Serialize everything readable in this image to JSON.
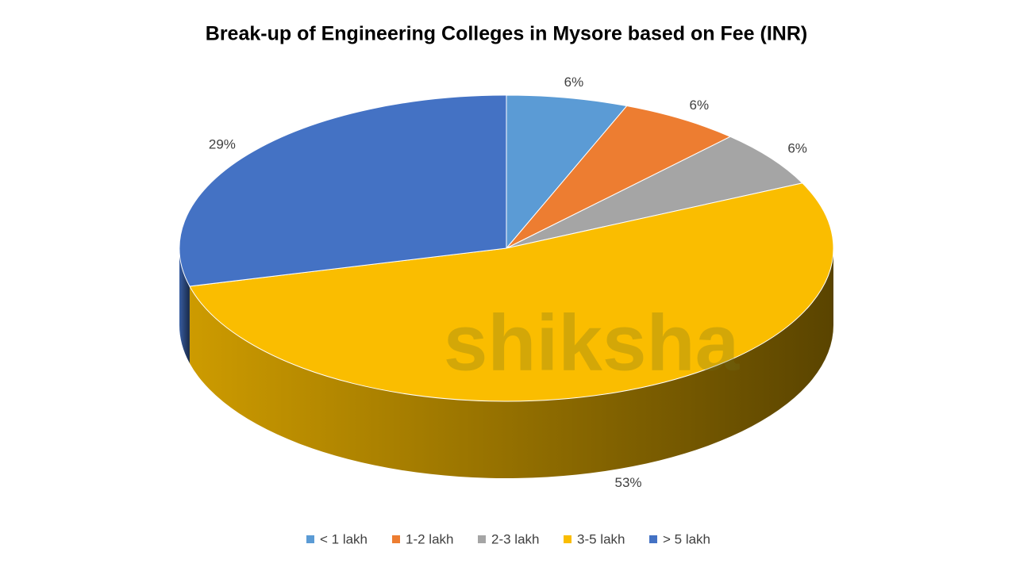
{
  "chart_data": {
    "type": "pie",
    "title": "Break-up of Engineering Colleges in Mysore based on Fee (INR)",
    "categories": [
      "< 1 lakh",
      "1-2 lakh",
      "2-3 lakh",
      "3-5 lakh",
      "> 5 lakh"
    ],
    "values": [
      6,
      6,
      6,
      53,
      29
    ],
    "value_labels": [
      "6%",
      "6%",
      "6%",
      "53%",
      "29%"
    ],
    "colors": [
      "#5b9bd5",
      "#ed7d31",
      "#a5a5a5",
      "#fabd00",
      "#4472c4"
    ],
    "legend": "bottom",
    "watermark": "shiksha"
  }
}
